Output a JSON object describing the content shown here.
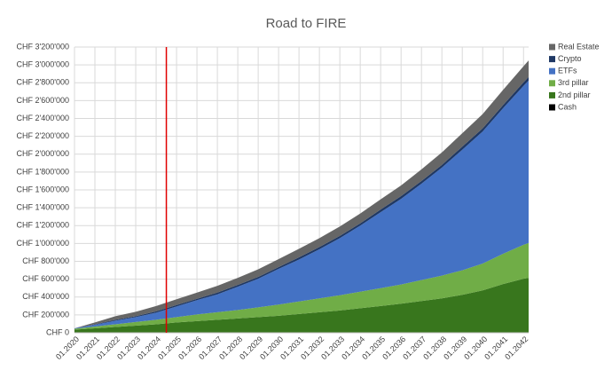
{
  "chart_data": {
    "type": "stacked-area",
    "title": "Road to FIRE",
    "x": [
      2020,
      2021,
      2022,
      2023,
      2024,
      2025,
      2026,
      2027,
      2028,
      2029,
      2030,
      2031,
      2032,
      2033,
      2034,
      2035,
      2036,
      2037,
      2038,
      2039,
      2040,
      2041,
      2042,
      2042.25
    ],
    "series": [
      {
        "name": "Cash",
        "color": "#000000",
        "values": [
          5000,
          5000,
          5000,
          5000,
          5000,
          5000,
          5000,
          5000,
          5000,
          5000,
          5000,
          5000,
          5000,
          5000,
          5000,
          5000,
          5000,
          5000,
          5000,
          5000,
          5000,
          5000,
          5000,
          5000
        ]
      },
      {
        "name": "2nd pillar",
        "color": "#38761d",
        "values": [
          30000,
          45000,
          60000,
          75000,
          90000,
          110000,
          125000,
          140000,
          155000,
          170000,
          185000,
          205000,
          225000,
          245000,
          270000,
          295000,
          320000,
          350000,
          380000,
          420000,
          470000,
          540000,
          600000,
          610000
        ]
      },
      {
        "name": "3rd pillar",
        "color": "#70ad47",
        "values": [
          10000,
          20000,
          30000,
          40000,
          50000,
          60000,
          75000,
          85000,
          95000,
          110000,
          125000,
          140000,
          155000,
          170000,
          185000,
          200000,
          215000,
          235000,
          255000,
          275000,
          300000,
          340000,
          380000,
          390000
        ]
      },
      {
        "name": "ETFs",
        "color": "#4472c4",
        "values": [
          5000,
          20000,
          40000,
          55000,
          80000,
          120000,
          160000,
          200000,
          260000,
          320000,
          400000,
          470000,
          550000,
          640000,
          740000,
          850000,
          960000,
          1080000,
          1210000,
          1350000,
          1480000,
          1630000,
          1780000,
          1820000
        ]
      },
      {
        "name": "Crypto",
        "color": "#1f3864",
        "values": [
          0,
          5000,
          10000,
          10000,
          15000,
          15000,
          15000,
          20000,
          20000,
          20000,
          20000,
          25000,
          25000,
          25000,
          25000,
          30000,
          30000,
          30000,
          30000,
          35000,
          35000,
          35000,
          40000,
          40000
        ]
      },
      {
        "name": "Real Estate",
        "color": "#666666",
        "values": [
          0,
          20000,
          40000,
          50000,
          60000,
          65000,
          70000,
          75000,
          80000,
          85000,
          90000,
          95000,
          100000,
          105000,
          110000,
          115000,
          120000,
          130000,
          140000,
          150000,
          160000,
          170000,
          180000,
          185000
        ]
      }
    ],
    "marker_x": 2024.5,
    "marker_color": "#e00000",
    "xlim": [
      2020,
      2042.25
    ],
    "xticks": [
      {
        "value": 2020,
        "label": "01.2020"
      },
      {
        "value": 2021,
        "label": "01.2021"
      },
      {
        "value": 2022,
        "label": "01.2022"
      },
      {
        "value": 2023,
        "label": "01.2023"
      },
      {
        "value": 2024,
        "label": "01.2024"
      },
      {
        "value": 2025,
        "label": "01.2025"
      },
      {
        "value": 2026,
        "label": "01.2026"
      },
      {
        "value": 2027,
        "label": "01.2027"
      },
      {
        "value": 2028,
        "label": "01.2028"
      },
      {
        "value": 2029,
        "label": "01.2029"
      },
      {
        "value": 2030,
        "label": "01.2030"
      },
      {
        "value": 2031,
        "label": "01.2031"
      },
      {
        "value": 2032,
        "label": "01.2032"
      },
      {
        "value": 2033,
        "label": "01.2033"
      },
      {
        "value": 2034,
        "label": "01.2034"
      },
      {
        "value": 2035,
        "label": "01.2035"
      },
      {
        "value": 2036,
        "label": "01.2036"
      },
      {
        "value": 2037,
        "label": "01.2037"
      },
      {
        "value": 2038,
        "label": "01.2038"
      },
      {
        "value": 2039,
        "label": "01.2039"
      },
      {
        "value": 2040,
        "label": "01.2040"
      },
      {
        "value": 2041,
        "label": "01.2041"
      },
      {
        "value": 2042,
        "label": "01.2042"
      }
    ],
    "ylim": [
      0,
      3200000
    ],
    "yticks": [
      {
        "value": 0,
        "label": "CHF 0"
      },
      {
        "value": 200000,
        "label": "CHF 200'000"
      },
      {
        "value": 400000,
        "label": "CHF 400'000"
      },
      {
        "value": 600000,
        "label": "CHF 600'000"
      },
      {
        "value": 800000,
        "label": "CHF 800'000"
      },
      {
        "value": 1000000,
        "label": "CHF 1'000'000"
      },
      {
        "value": 1200000,
        "label": "CHF 1'200'000"
      },
      {
        "value": 1400000,
        "label": "CHF 1'400'000"
      },
      {
        "value": 1600000,
        "label": "CHF 1'600'000"
      },
      {
        "value": 1800000,
        "label": "CHF 1'800'000"
      },
      {
        "value": 2000000,
        "label": "CHF 2'000'000"
      },
      {
        "value": 2200000,
        "label": "CHF 2'200'000"
      },
      {
        "value": 2400000,
        "label": "CHF 2'400'000"
      },
      {
        "value": 2600000,
        "label": "CHF 2'600'000"
      },
      {
        "value": 2800000,
        "label": "CHF 2'800'000"
      },
      {
        "value": 3000000,
        "label": "CHF 3'000'000"
      },
      {
        "value": 3200000,
        "label": "CHF 3'200'000"
      }
    ],
    "grid": true,
    "legend": "right"
  }
}
